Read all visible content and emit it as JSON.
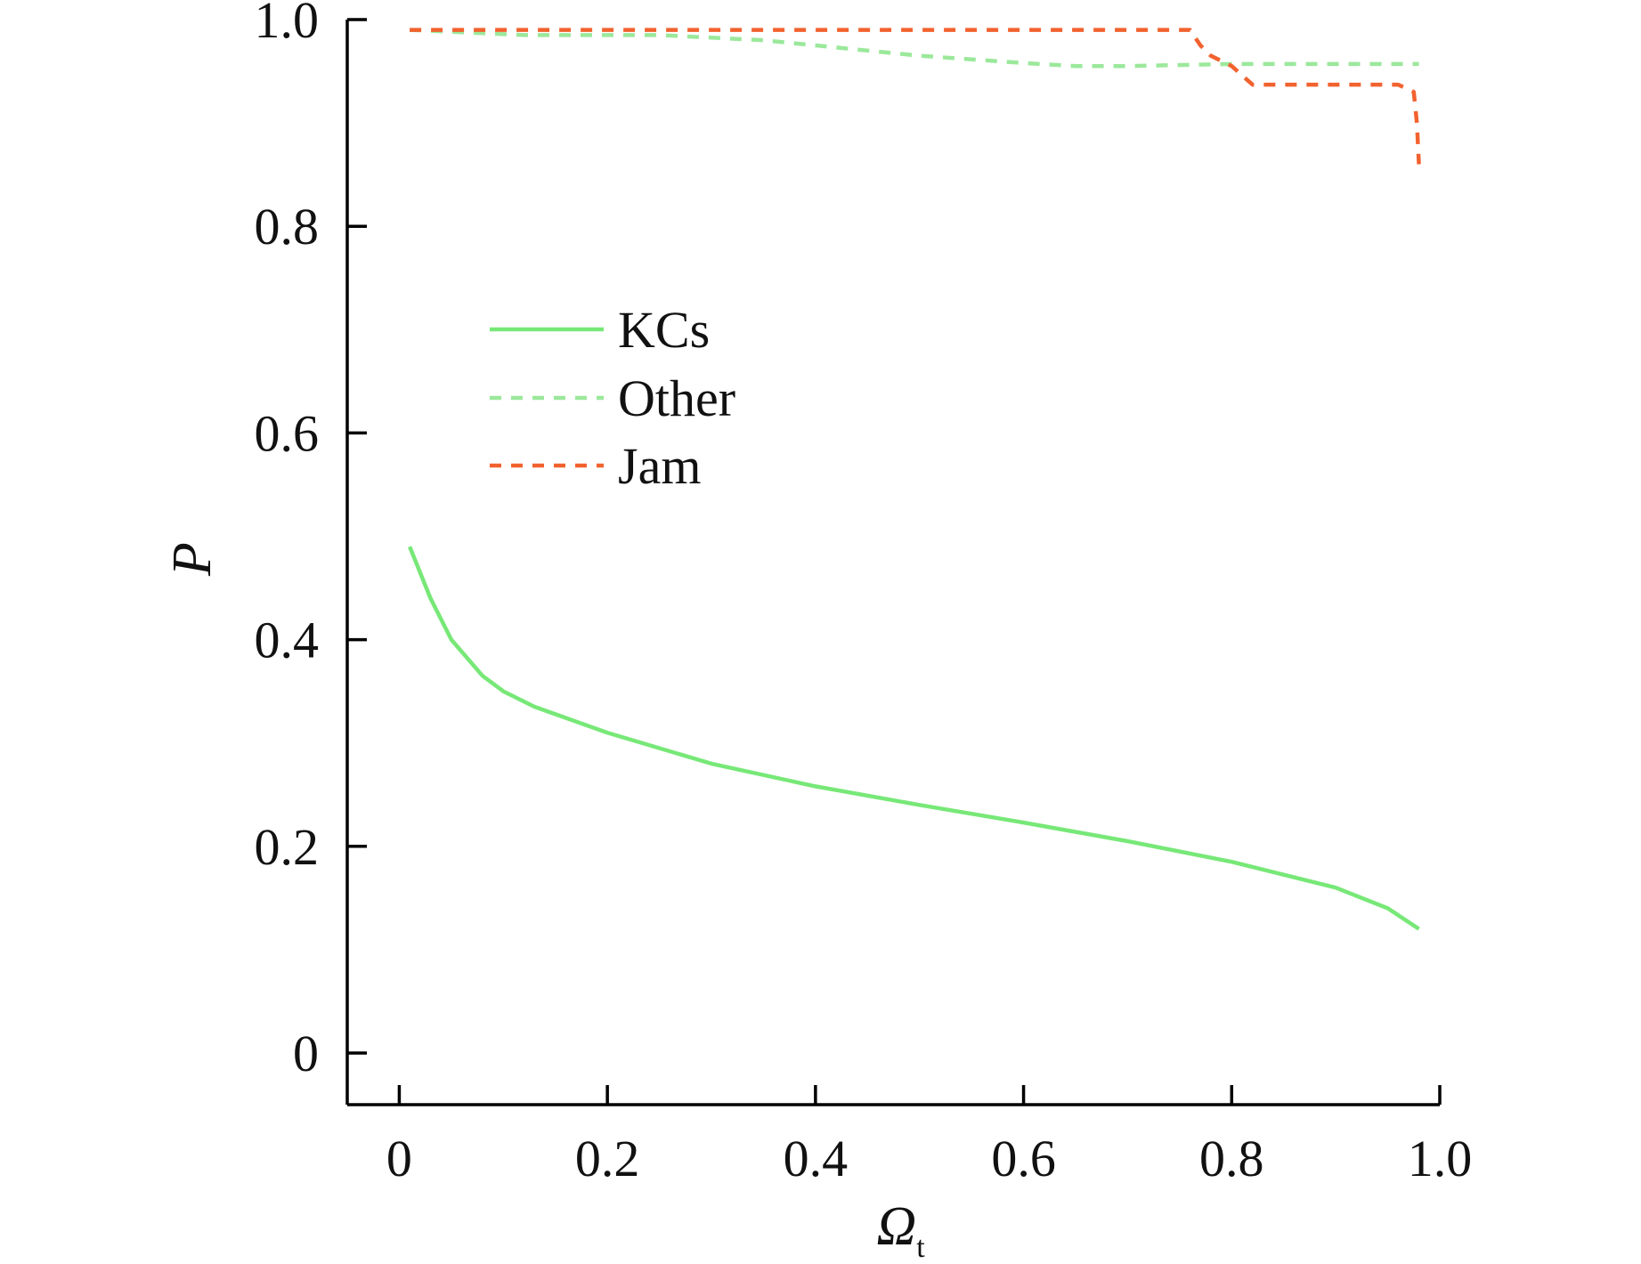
{
  "chart_data": {
    "type": "line",
    "title": "",
    "xlabel": "Ω",
    "xlabel_subscript": "t",
    "ylabel": "P",
    "xlim": [
      -0.05,
      1.0
    ],
    "ylim": [
      -0.05,
      1.0
    ],
    "x_ticks": [
      0,
      0.2,
      0.4,
      0.6,
      0.8,
      1.0
    ],
    "x_tick_labels": [
      "0",
      "0.2",
      "0.4",
      "0.6",
      "0.8",
      "1.0"
    ],
    "y_ticks": [
      0,
      0.2,
      0.4,
      0.6,
      0.8,
      1.0
    ],
    "y_tick_labels": [
      "0",
      "0.2",
      "0.4",
      "0.6",
      "0.8",
      "1.0"
    ],
    "grid": false,
    "legend_position": "upper-left",
    "series": [
      {
        "name": "KCs",
        "style": "solid",
        "color": "#77e877",
        "x": [
          0.01,
          0.03,
          0.05,
          0.08,
          0.1,
          0.13,
          0.2,
          0.3,
          0.4,
          0.5,
          0.6,
          0.7,
          0.8,
          0.9,
          0.95,
          0.98
        ],
        "y": [
          0.49,
          0.44,
          0.4,
          0.365,
          0.35,
          0.335,
          0.31,
          0.28,
          0.258,
          0.24,
          0.223,
          0.205,
          0.185,
          0.16,
          0.14,
          0.12
        ]
      },
      {
        "name": "Other",
        "style": "dashed",
        "color": "#9be89b",
        "x": [
          0.01,
          0.12,
          0.25,
          0.35,
          0.4,
          0.5,
          0.6,
          0.65,
          0.7,
          0.8,
          0.9,
          0.98
        ],
        "y": [
          0.99,
          0.985,
          0.985,
          0.98,
          0.975,
          0.965,
          0.958,
          0.955,
          0.955,
          0.957,
          0.957,
          0.957
        ]
      },
      {
        "name": "Jam",
        "style": "dashed",
        "color": "#f2622e",
        "x": [
          0.01,
          0.2,
          0.4,
          0.6,
          0.76,
          0.77,
          0.78,
          0.8,
          0.82,
          0.9,
          0.96,
          0.975,
          0.978,
          0.98
        ],
        "y": [
          0.99,
          0.99,
          0.99,
          0.99,
          0.99,
          0.975,
          0.965,
          0.955,
          0.937,
          0.937,
          0.937,
          0.93,
          0.9,
          0.86
        ]
      }
    ]
  }
}
